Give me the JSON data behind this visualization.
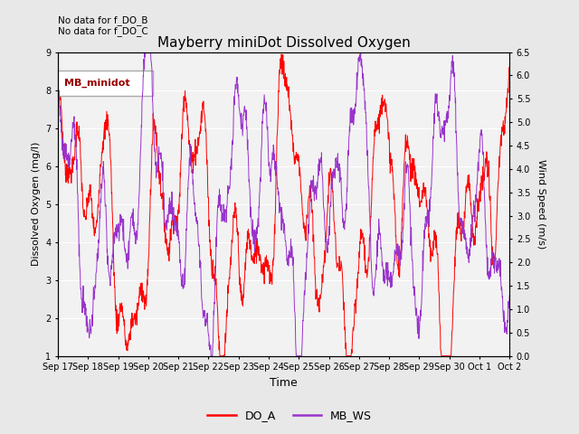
{
  "title": "Mayberry miniDot Dissolved Oxygen",
  "xlabel": "Time",
  "ylabel_left": "Dissolved Oxygen (mg/l)",
  "ylabel_right": "Wind Speed (m/s)",
  "annotations": [
    "No data for f_DO_B",
    "No data for f_DO_C"
  ],
  "legend_label": "MB_minidot",
  "legend_entries": [
    "DO_A",
    "MB_WS"
  ],
  "do_color": "#ff0000",
  "ws_color": "#9933cc",
  "ylim_left": [
    1.0,
    9.0
  ],
  "ylim_right": [
    0.0,
    6.5
  ],
  "yticks_left": [
    1.0,
    2.0,
    3.0,
    4.0,
    5.0,
    6.0,
    7.0,
    8.0,
    9.0
  ],
  "yticks_right": [
    0.0,
    0.5,
    1.0,
    1.5,
    2.0,
    2.5,
    3.0,
    3.5,
    4.0,
    4.5,
    5.0,
    5.5,
    6.0,
    6.5
  ],
  "x_tick_labels": [
    "Sep 17",
    "Sep 18",
    "Sep 19",
    "Sep 20",
    "Sep 21",
    "Sep 22",
    "Sep 23",
    "Sep 24",
    "Sep 25",
    "Sep 26",
    "Sep 27",
    "Sep 28",
    "Sep 29",
    "Sep 30",
    "Oct 1",
    "Oct 2"
  ],
  "background_color": "#e8e8e8",
  "plot_bg_color": "#f2f2f2",
  "grid_color": "#ffffff"
}
